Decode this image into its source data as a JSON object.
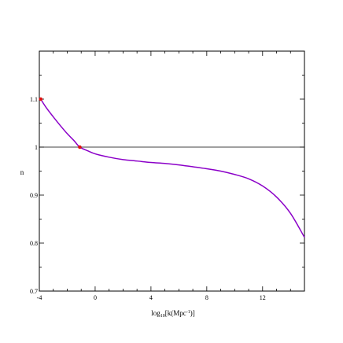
{
  "chart_data": {
    "type": "line",
    "title": "",
    "xlabel_main": "log",
    "xlabel_sub": "10",
    "xlabel_rest": "[k(Mpc",
    "xlabel_sup": "-1",
    "xlabel_end": ")]",
    "ylabel": "n",
    "xlim": [
      -4,
      15
    ],
    "ylim": [
      0.7,
      1.2
    ],
    "grid": false,
    "x_ticks": [
      -4,
      0,
      4,
      8,
      12
    ],
    "x_tick_labels": [
      "-4",
      "0",
      "4",
      "8",
      "12"
    ],
    "y_ticks": [
      0.7,
      0.8,
      0.9,
      1.0,
      1.1
    ],
    "y_tick_labels": [
      "0.7",
      "0.8",
      "0.9",
      "1",
      "1.1"
    ],
    "reference_line": {
      "y": 1.0,
      "color": "#000000"
    },
    "series": [
      {
        "color": "#8b00c8",
        "x": [
          -3.9,
          -3.5,
          -3,
          -2.5,
          -2,
          -1.5,
          -1.1,
          -0.5,
          0,
          1,
          2,
          3,
          4,
          5,
          6,
          7,
          8,
          9,
          10,
          11,
          12,
          13,
          14,
          15
        ],
        "y": [
          1.1,
          1.082,
          1.063,
          1.045,
          1.028,
          1.013,
          1.0,
          0.992,
          0.986,
          0.979,
          0.974,
          0.971,
          0.968,
          0.966,
          0.963,
          0.959,
          0.955,
          0.95,
          0.943,
          0.934,
          0.919,
          0.896,
          0.862,
          0.812
        ]
      }
    ],
    "markers": [
      {
        "x": -3.9,
        "y": 1.1,
        "color": "#e01010"
      },
      {
        "x": -1.1,
        "y": 1.0,
        "color": "#e01010"
      }
    ]
  }
}
